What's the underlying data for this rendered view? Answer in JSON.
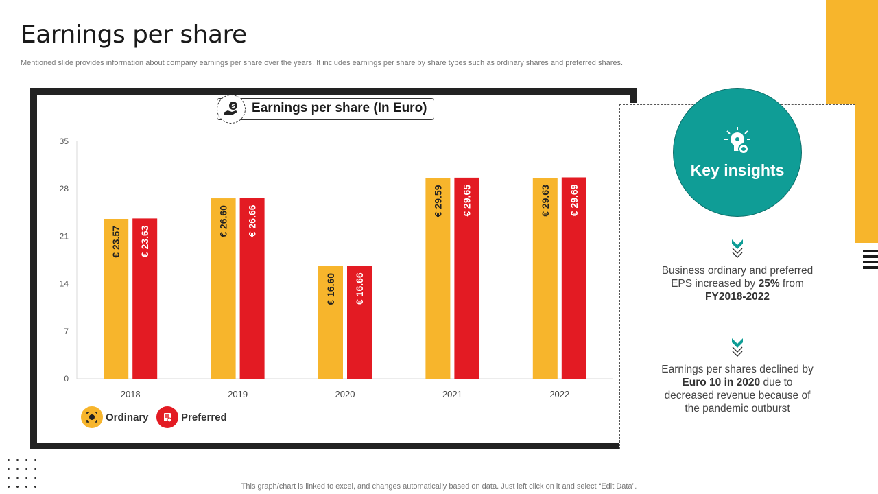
{
  "page": {
    "title": "Earnings per share",
    "subtitle": "Mentioned slide provides information about company earnings per share over the years. It includes earnings per share by share types such as ordinary shares and preferred shares.",
    "footnote": "This graph/chart is linked to excel,  and changes automatically based on data. Just left click on it and select “Edit Data”."
  },
  "insights": {
    "title": "Key insights",
    "item1": {
      "pre": "Business ordinary and preferred EPS increased by ",
      "bold1": "25%",
      "mid": " from ",
      "bold2": "FY2018-2022"
    },
    "item2": {
      "pre": "Earnings per shares declined by ",
      "bold1": "Euro 10 in 2020",
      "post": " due to decreased revenue because of the pandemic outburst"
    }
  },
  "colors": {
    "ordinary": "#f7b52c",
    "preferred": "#e31b23",
    "accent": "#0f9d96"
  },
  "chart_data": {
    "type": "bar",
    "title": "Earnings per share (In Euro)",
    "categories": [
      "2018",
      "2019",
      "2020",
      "2021",
      "2022"
    ],
    "series": [
      {
        "name": "Ordinary",
        "values": [
          23.57,
          26.6,
          16.6,
          29.59,
          29.63
        ],
        "labels": [
          "€ 23.57",
          "€ 26.60",
          "€ 16.60",
          "€ 29.59",
          "€ 29.63"
        ]
      },
      {
        "name": "Preferred",
        "values": [
          23.63,
          26.66,
          16.66,
          29.65,
          29.69
        ],
        "labels": [
          "€ 23.63",
          "€ 26.66",
          "€ 16.66",
          "€ 29.65",
          "€ 29.69"
        ]
      }
    ],
    "yticks": [
      "0",
      "7",
      "14",
      "21",
      "28",
      "35"
    ],
    "ylim": [
      0,
      35
    ],
    "xlabel": "",
    "ylabel": "",
    "legend": "bottom-left"
  }
}
